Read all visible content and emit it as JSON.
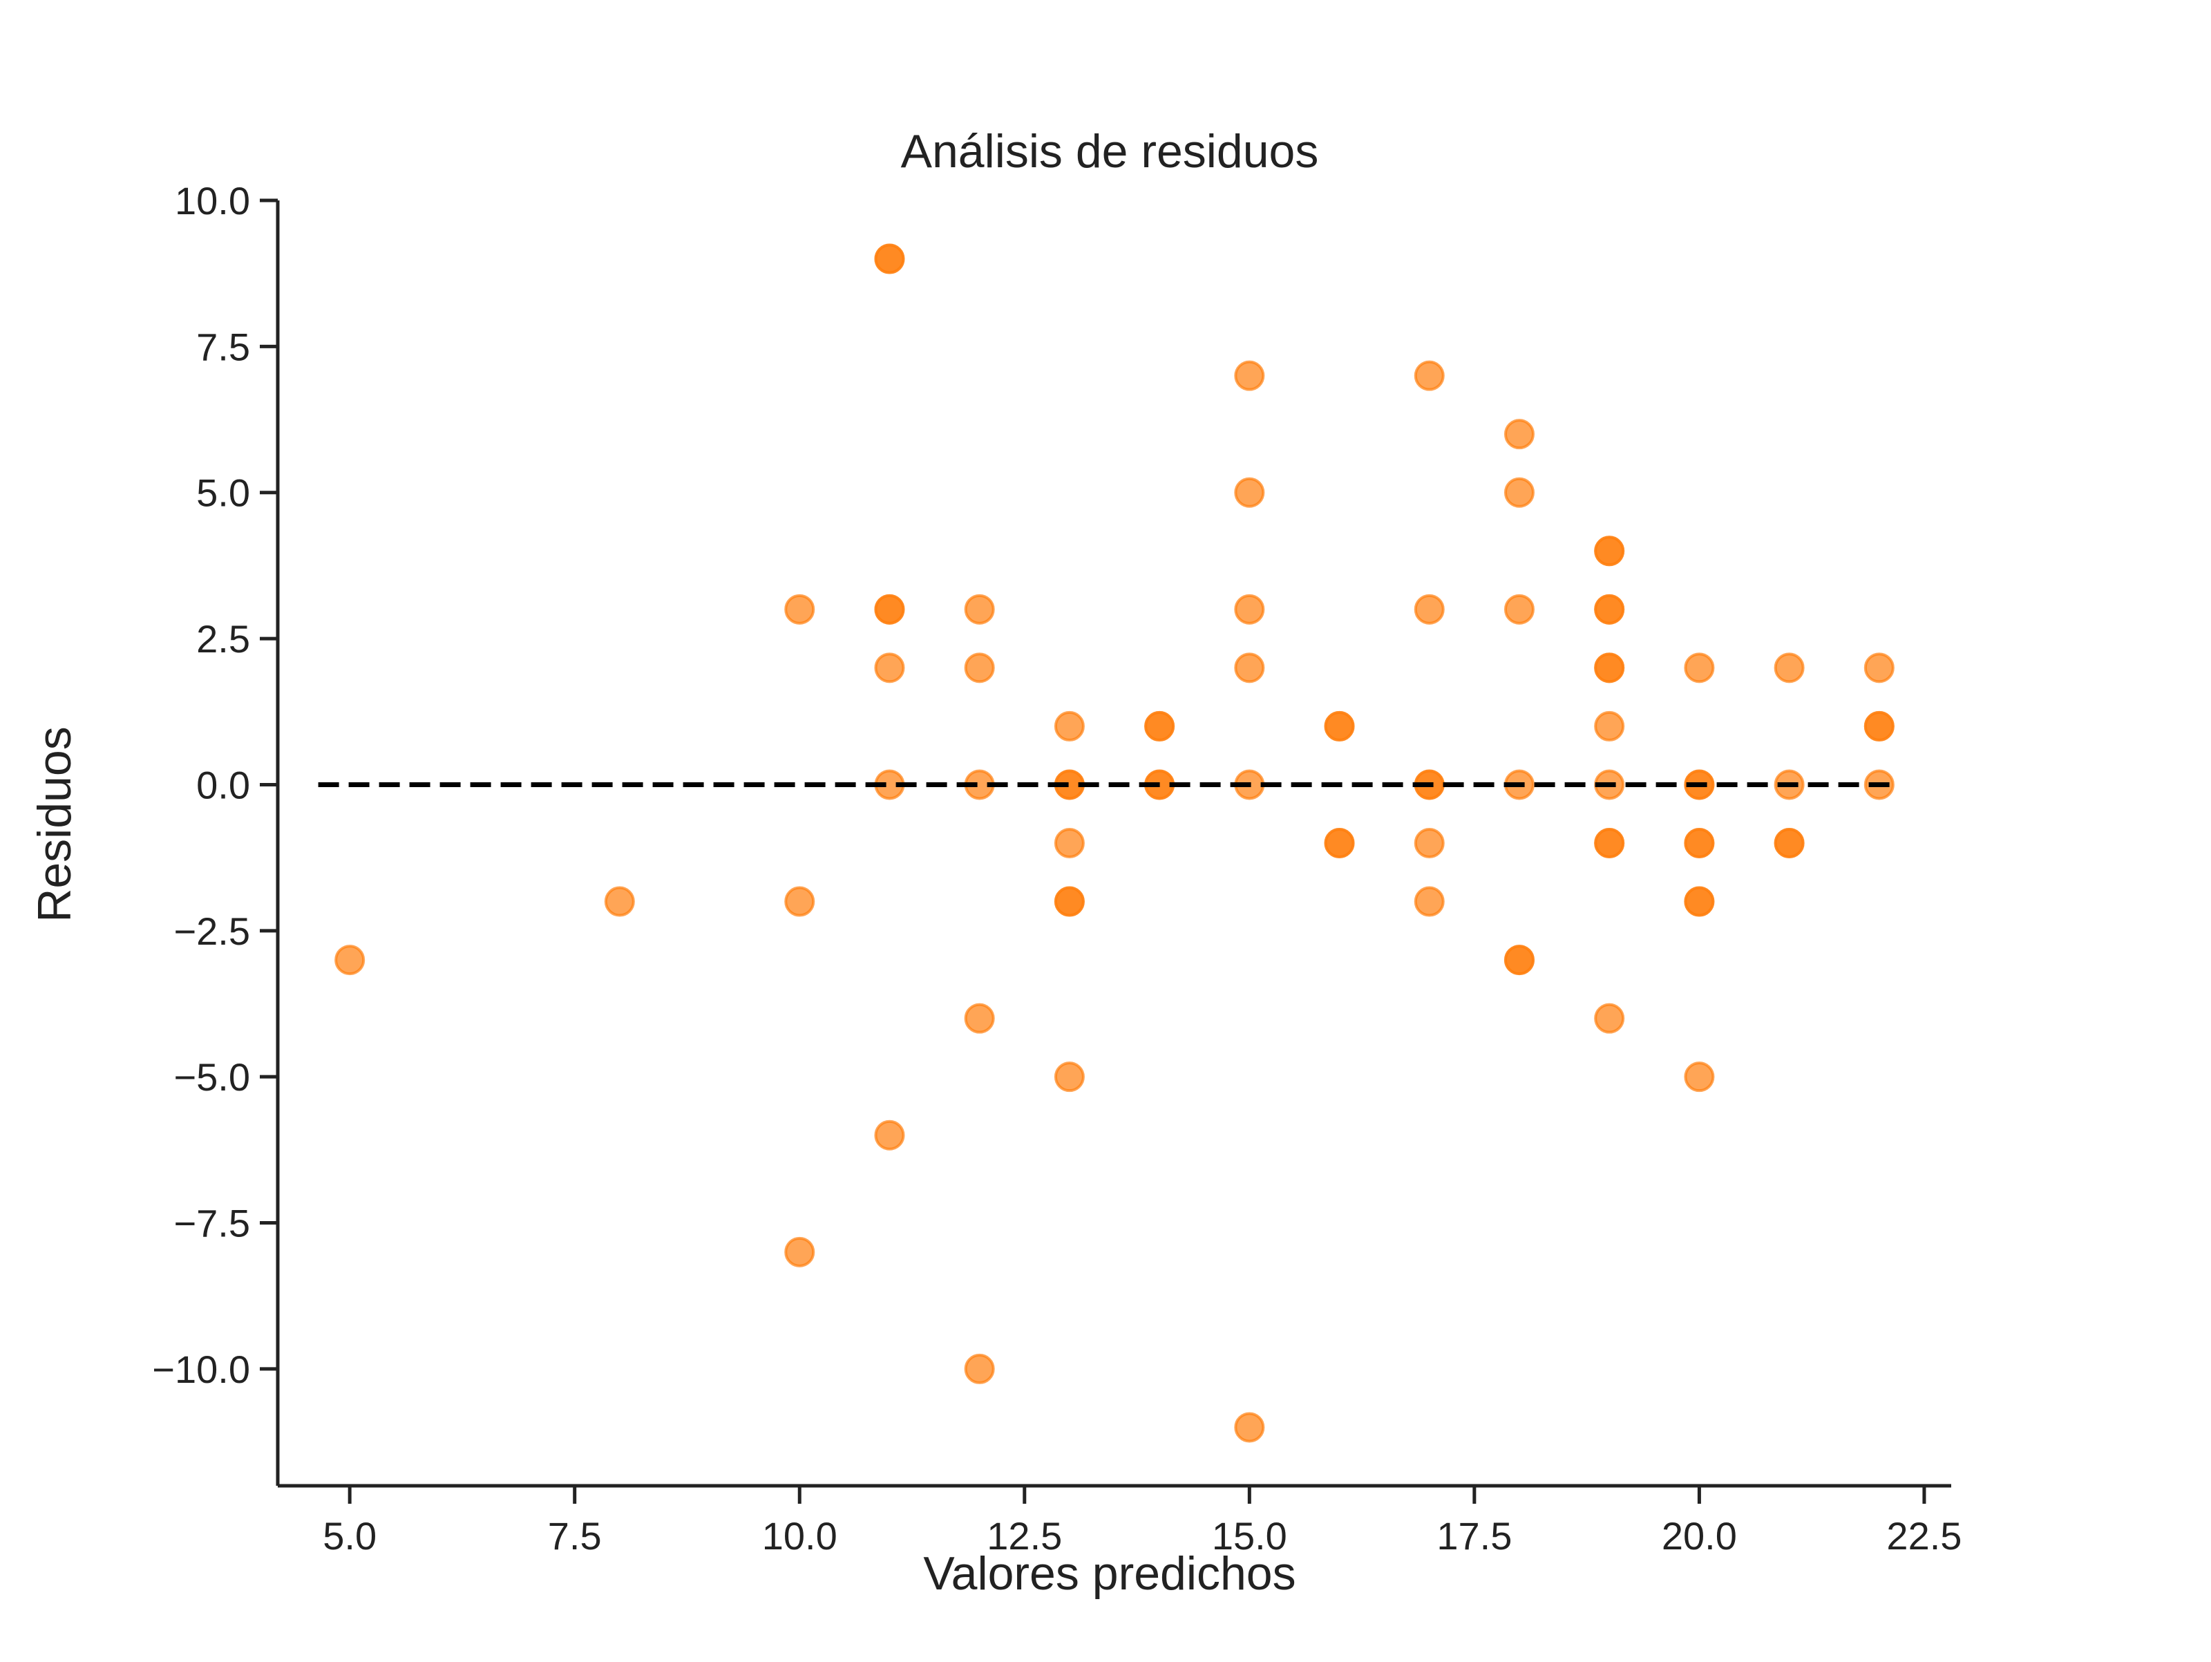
{
  "chart_data": {
    "type": "scatter",
    "title": "Análisis de residuos",
    "xlabel": "Valores predichos",
    "ylabel": "Residuos",
    "xlim": [
      4.2,
      22.8
    ],
    "ylim": [
      -12,
      10
    ],
    "xticks": [
      5.0,
      7.5,
      10.0,
      12.5,
      15.0,
      17.5,
      20.0,
      22.5
    ],
    "yticks": [
      10.0,
      7.5,
      5.0,
      2.5,
      0.0,
      -2.5,
      -5.0,
      -7.5,
      -10.0
    ],
    "xtick_labels": [
      "5.0",
      "7.5",
      "10.0",
      "12.5",
      "15.0",
      "17.5",
      "20.0",
      "22.5"
    ],
    "ytick_labels": [
      "10.0",
      "7.5",
      "5.0",
      "2.5",
      "0.0",
      "−2.5",
      "−5.0",
      "−7.5",
      "−10.0"
    ],
    "reference_line": {
      "y": 0,
      "style": "dashed",
      "color": "#000000"
    },
    "grid": false,
    "marker_color": "#ff7f0e",
    "marker_alpha": 0.7,
    "points": [
      {
        "x": 5,
        "y": -3
      },
      {
        "x": 8,
        "y": -2
      },
      {
        "x": 10,
        "y": 3
      },
      {
        "x": 10,
        "y": -2
      },
      {
        "x": 10,
        "y": -8
      },
      {
        "x": 11,
        "y": 9
      },
      {
        "x": 11,
        "y": 9
      },
      {
        "x": 11,
        "y": 3
      },
      {
        "x": 11,
        "y": 3
      },
      {
        "x": 11,
        "y": 2
      },
      {
        "x": 11,
        "y": 0
      },
      {
        "x": 11,
        "y": -6
      },
      {
        "x": 12,
        "y": 3
      },
      {
        "x": 12,
        "y": 2
      },
      {
        "x": 12,
        "y": 0
      },
      {
        "x": 12,
        "y": -4
      },
      {
        "x": 12,
        "y": -10
      },
      {
        "x": 13,
        "y": 1
      },
      {
        "x": 13,
        "y": 0
      },
      {
        "x": 13,
        "y": 0
      },
      {
        "x": 13,
        "y": -1
      },
      {
        "x": 13,
        "y": -2
      },
      {
        "x": 13,
        "y": -2
      },
      {
        "x": 13,
        "y": -5
      },
      {
        "x": 14,
        "y": 1
      },
      {
        "x": 14,
        "y": 1
      },
      {
        "x": 14,
        "y": 0
      },
      {
        "x": 14,
        "y": 0
      },
      {
        "x": 15,
        "y": 7
      },
      {
        "x": 15,
        "y": 5
      },
      {
        "x": 15,
        "y": 3
      },
      {
        "x": 15,
        "y": 2
      },
      {
        "x": 15,
        "y": 0
      },
      {
        "x": 15,
        "y": -11
      },
      {
        "x": 16,
        "y": 1
      },
      {
        "x": 16,
        "y": 1
      },
      {
        "x": 16,
        "y": -1
      },
      {
        "x": 16,
        "y": -1
      },
      {
        "x": 17,
        "y": 7
      },
      {
        "x": 17,
        "y": 3
      },
      {
        "x": 17,
        "y": 0
      },
      {
        "x": 17,
        "y": 0
      },
      {
        "x": 17,
        "y": -1
      },
      {
        "x": 17,
        "y": -2
      },
      {
        "x": 18,
        "y": 6
      },
      {
        "x": 18,
        "y": 5
      },
      {
        "x": 18,
        "y": 3
      },
      {
        "x": 18,
        "y": 0
      },
      {
        "x": 18,
        "y": -3
      },
      {
        "x": 18,
        "y": -3
      },
      {
        "x": 19,
        "y": 4
      },
      {
        "x": 19,
        "y": 4
      },
      {
        "x": 19,
        "y": 3
      },
      {
        "x": 19,
        "y": 3
      },
      {
        "x": 19,
        "y": 2
      },
      {
        "x": 19,
        "y": 2
      },
      {
        "x": 19,
        "y": 1
      },
      {
        "x": 19,
        "y": 0
      },
      {
        "x": 19,
        "y": -1
      },
      {
        "x": 19,
        "y": -1
      },
      {
        "x": 19,
        "y": -4
      },
      {
        "x": 20,
        "y": 2
      },
      {
        "x": 20,
        "y": 0
      },
      {
        "x": 20,
        "y": 0
      },
      {
        "x": 20,
        "y": -1
      },
      {
        "x": 20,
        "y": -1
      },
      {
        "x": 20,
        "y": -2
      },
      {
        "x": 20,
        "y": -2
      },
      {
        "x": 20,
        "y": -5
      },
      {
        "x": 21,
        "y": 2
      },
      {
        "x": 21,
        "y": 0
      },
      {
        "x": 21,
        "y": -1
      },
      {
        "x": 21,
        "y": -1
      },
      {
        "x": 22,
        "y": 2
      },
      {
        "x": 22,
        "y": 1
      },
      {
        "x": 22,
        "y": 1
      },
      {
        "x": 22,
        "y": 0
      }
    ]
  }
}
